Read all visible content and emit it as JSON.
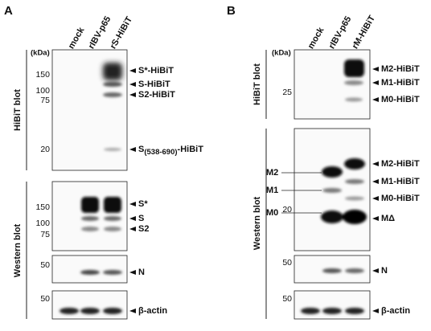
{
  "panels": [
    {
      "label": "A",
      "lanes": [
        "mock",
        "rIBV-p65",
        "rS-HiBiT"
      ],
      "kda_label": "(kDa)",
      "sections": [
        {
          "title": "HiBiT blot",
          "blots": [
            {
              "markers": [
                150,
                100,
                75,
                20
              ],
              "bands": [
                "S*-HiBiT",
                "S-HiBiT",
                "S2-HiBiT",
                {
                  "main": "S",
                  "sub": "(538-690)",
                  "suffix": "-HiBiT"
                }
              ]
            }
          ]
        },
        {
          "title": "Western blot",
          "blots": [
            {
              "markers": [
                150,
                100,
                75
              ],
              "bands": [
                "S*",
                "S",
                "S2"
              ]
            },
            {
              "markers": [
                50
              ],
              "bands": [
                "N"
              ]
            },
            {
              "markers": [
                50
              ],
              "bands": [
                "β-actin"
              ]
            }
          ]
        }
      ]
    },
    {
      "label": "B",
      "lanes": [
        "mock",
        "rIBV-p65",
        "rM-HiBiT"
      ],
      "kda_label": "(kDa)",
      "sections": [
        {
          "title": "HiBiT blot",
          "blots": [
            {
              "markers": [
                25
              ],
              "bands": [
                "M2-HiBiT",
                "M1-HiBiT",
                "M0-HiBiT"
              ]
            }
          ]
        },
        {
          "title": "Western blot",
          "blots": [
            {
              "markers": [
                20
              ],
              "bands": [
                "M2-HiBiT",
                "M1-HiBiT",
                "M0-HiBiT",
                "MΔ"
              ],
              "left_labels": [
                "M2",
                "M1",
                "M0"
              ]
            },
            {
              "markers": [
                50
              ],
              "bands": [
                "N"
              ]
            },
            {
              "markers": [
                50
              ],
              "bands": [
                "β-actin"
              ]
            }
          ]
        }
      ]
    }
  ]
}
